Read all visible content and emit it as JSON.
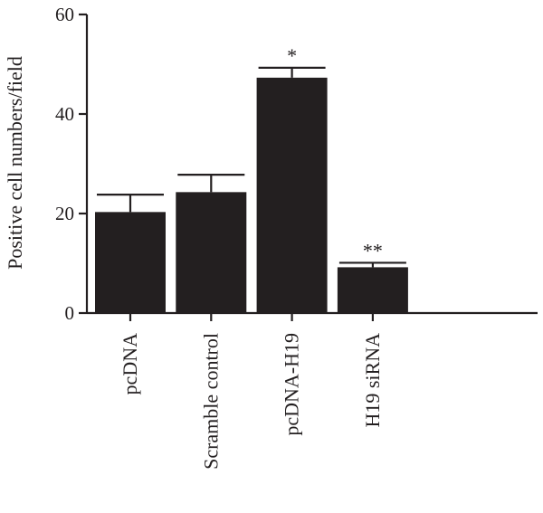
{
  "chart_data": {
    "type": "bar",
    "title": "",
    "xlabel": "",
    "ylabel": "Positive cell numbers/field",
    "ylim": [
      0,
      60
    ],
    "yticks": [
      0,
      20,
      40,
      60
    ],
    "grid": false,
    "legend": "none",
    "bar_color": "#231f20",
    "categories": [
      "pcDNA",
      "Scramble control",
      "pcDNA-H19",
      "H19 siRNA"
    ],
    "values": [
      20.3,
      24.3,
      47.3,
      9.2
    ],
    "errors": [
      3.5,
      3.5,
      2.0,
      0.9
    ],
    "annotations": [
      "",
      "",
      "*",
      "**"
    ]
  }
}
